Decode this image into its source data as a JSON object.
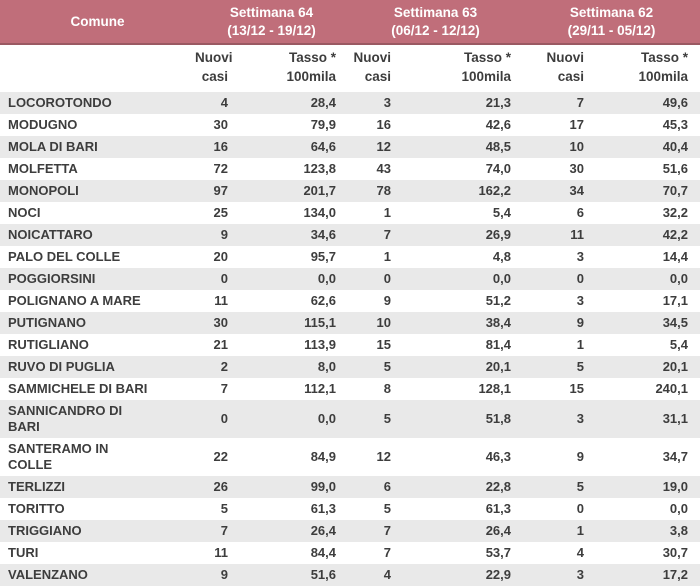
{
  "colors": {
    "header_bg": "#c06e7a",
    "header_border": "#9a5962",
    "stripe": "#e9e9e9",
    "text": "#3d3d3d",
    "header_text": "#ffffff"
  },
  "table": {
    "comune_header": "Comune",
    "weeks": [
      {
        "label": "Settimana 64",
        "dates": "(13/12 - 19/12)"
      },
      {
        "label": "Settimana 63",
        "dates": "(06/12 - 12/12)"
      },
      {
        "label": "Settimana 62",
        "dates": "(29/11 - 05/12)"
      }
    ],
    "subheaders": {
      "cases": "Nuovi\ncasi",
      "rate": "Tasso *\n100mila"
    },
    "rows": [
      {
        "comune": "LOCOROTONDO",
        "values": [
          "4",
          "28,4",
          "3",
          "21,3",
          "7",
          "49,6"
        ]
      },
      {
        "comune": "MODUGNO",
        "values": [
          "30",
          "79,9",
          "16",
          "42,6",
          "17",
          "45,3"
        ]
      },
      {
        "comune": "MOLA DI BARI",
        "values": [
          "16",
          "64,6",
          "12",
          "48,5",
          "10",
          "40,4"
        ]
      },
      {
        "comune": "MOLFETTA",
        "values": [
          "72",
          "123,8",
          "43",
          "74,0",
          "30",
          "51,6"
        ]
      },
      {
        "comune": "MONOPOLI",
        "values": [
          "97",
          "201,7",
          "78",
          "162,2",
          "34",
          "70,7"
        ]
      },
      {
        "comune": "NOCI",
        "values": [
          "25",
          "134,0",
          "1",
          "5,4",
          "6",
          "32,2"
        ]
      },
      {
        "comune": "NOICATTARO",
        "values": [
          "9",
          "34,6",
          "7",
          "26,9",
          "11",
          "42,2"
        ]
      },
      {
        "comune": "PALO DEL COLLE",
        "values": [
          "20",
          "95,7",
          "1",
          "4,8",
          "3",
          "14,4"
        ]
      },
      {
        "comune": "POGGIORSINI",
        "values": [
          "0",
          "0,0",
          "0",
          "0,0",
          "0",
          "0,0"
        ]
      },
      {
        "comune": "POLIGNANO A MARE",
        "values": [
          "11",
          "62,6",
          "9",
          "51,2",
          "3",
          "17,1"
        ]
      },
      {
        "comune": "PUTIGNANO",
        "values": [
          "30",
          "115,1",
          "10",
          "38,4",
          "9",
          "34,5"
        ]
      },
      {
        "comune": "RUTIGLIANO",
        "values": [
          "21",
          "113,9",
          "15",
          "81,4",
          "1",
          "5,4"
        ]
      },
      {
        "comune": "RUVO DI PUGLIA",
        "values": [
          "2",
          "8,0",
          "5",
          "20,1",
          "5",
          "20,1"
        ]
      },
      {
        "comune": "SAMMICHELE DI BARI",
        "values": [
          "7",
          "112,1",
          "8",
          "128,1",
          "15",
          "240,1"
        ]
      },
      {
        "comune": "SANNICANDRO DI\nBARI",
        "values": [
          "0",
          "0,0",
          "5",
          "51,8",
          "3",
          "31,1"
        ]
      },
      {
        "comune": "SANTERAMO IN\nCOLLE",
        "values": [
          "22",
          "84,9",
          "12",
          "46,3",
          "9",
          "34,7"
        ]
      },
      {
        "comune": "TERLIZZI",
        "values": [
          "26",
          "99,0",
          "6",
          "22,8",
          "5",
          "19,0"
        ]
      },
      {
        "comune": "TORITTO",
        "values": [
          "5",
          "61,3",
          "5",
          "61,3",
          "0",
          "0,0"
        ]
      },
      {
        "comune": "TRIGGIANO",
        "values": [
          "7",
          "26,4",
          "7",
          "26,4",
          "1",
          "3,8"
        ]
      },
      {
        "comune": "TURI",
        "values": [
          "11",
          "84,4",
          "7",
          "53,7",
          "4",
          "30,7"
        ]
      },
      {
        "comune": "VALENZANO",
        "values": [
          "9",
          "51,6",
          "4",
          "22,9",
          "3",
          "17,2"
        ]
      }
    ]
  },
  "chart_data": {
    "type": "table",
    "title": "Nuovi casi e tasso per 100mila abitanti per comune, Settimane 62-64",
    "column_groups": [
      "Settimana 64 (13/12 - 19/12)",
      "Settimana 63 (06/12 - 12/12)",
      "Settimana 62 (29/11 - 05/12)"
    ],
    "columns": [
      "Comune",
      "Nuovi casi (S64)",
      "Tasso * 100mila (S64)",
      "Nuovi casi (S63)",
      "Tasso * 100mila (S63)",
      "Nuovi casi (S62)",
      "Tasso * 100mila (S62)"
    ],
    "rows": [
      [
        "LOCOROTONDO",
        4,
        28.4,
        3,
        21.3,
        7,
        49.6
      ],
      [
        "MODUGNO",
        30,
        79.9,
        16,
        42.6,
        17,
        45.3
      ],
      [
        "MOLA DI BARI",
        16,
        64.6,
        12,
        48.5,
        10,
        40.4
      ],
      [
        "MOLFETTA",
        72,
        123.8,
        43,
        74.0,
        30,
        51.6
      ],
      [
        "MONOPOLI",
        97,
        201.7,
        78,
        162.2,
        34,
        70.7
      ],
      [
        "NOCI",
        25,
        134.0,
        1,
        5.4,
        6,
        32.2
      ],
      [
        "NOICATTARO",
        9,
        34.6,
        7,
        26.9,
        11,
        42.2
      ],
      [
        "PALO DEL COLLE",
        20,
        95.7,
        1,
        4.8,
        3,
        14.4
      ],
      [
        "POGGIORSINI",
        0,
        0.0,
        0,
        0.0,
        0,
        0.0
      ],
      [
        "POLIGNANO A MARE",
        11,
        62.6,
        9,
        51.2,
        3,
        17.1
      ],
      [
        "PUTIGNANO",
        30,
        115.1,
        10,
        38.4,
        9,
        34.5
      ],
      [
        "RUTIGLIANO",
        21,
        113.9,
        15,
        81.4,
        1,
        5.4
      ],
      [
        "RUVO DI PUGLIA",
        2,
        8.0,
        5,
        20.1,
        5,
        20.1
      ],
      [
        "SAMMICHELE DI BARI",
        7,
        112.1,
        8,
        128.1,
        15,
        240.1
      ],
      [
        "SANNICANDRO DI BARI",
        0,
        0.0,
        5,
        51.8,
        3,
        31.1
      ],
      [
        "SANTERAMO IN COLLE",
        22,
        84.9,
        12,
        46.3,
        9,
        34.7
      ],
      [
        "TERLIZZI",
        26,
        99.0,
        6,
        22.8,
        5,
        19.0
      ],
      [
        "TORITTO",
        5,
        61.3,
        5,
        61.3,
        0,
        0.0
      ],
      [
        "TRIGGIANO",
        7,
        26.4,
        7,
        26.4,
        1,
        3.8
      ],
      [
        "TURI",
        11,
        84.4,
        7,
        53.7,
        4,
        30.7
      ],
      [
        "VALENZANO",
        9,
        51.6,
        4,
        22.9,
        3,
        17.2
      ]
    ]
  }
}
